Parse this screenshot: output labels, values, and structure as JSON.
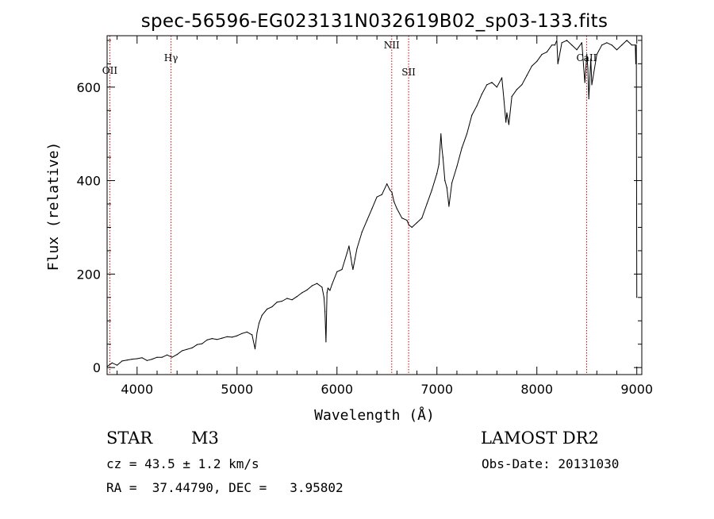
{
  "chart_data": {
    "type": "line",
    "title": "spec-56596-EG023131N032619B02_sp03-133.fits",
    "xlabel": "Wavelength (Å)",
    "ylabel": "Flux (relative)",
    "xlim": [
      3700,
      9050
    ],
    "ylim": [
      -15,
      710
    ],
    "xticks": [
      4000,
      5000,
      6000,
      7000,
      8000,
      9000
    ],
    "yticks": [
      0,
      200,
      400,
      600
    ],
    "grid": false,
    "legend": "none",
    "line_color": "#000000",
    "marker_color": "#cc0000",
    "series": [
      {
        "x": [
          3700,
          3750,
          3800,
          3850,
          3900,
          3950,
          4000,
          4050,
          4100,
          4150,
          4200,
          4250,
          4300,
          4350,
          4400,
          4450,
          4500,
          4550,
          4600,
          4650,
          4700,
          4750,
          4800,
          4850,
          4900,
          4950,
          5000,
          5050,
          5100,
          5150,
          5180,
          5200,
          5220,
          5250,
          5300,
          5350,
          5400,
          5450,
          5500,
          5550,
          5600,
          5650,
          5700,
          5750,
          5800,
          5850,
          5870,
          5880,
          5890,
          5900,
          5910,
          5930,
          5950,
          6000,
          6050,
          6100,
          6120,
          6140,
          6150,
          6160,
          6180,
          6200,
          6250,
          6300,
          6350,
          6400,
          6450,
          6500,
          6530,
          6550,
          6570,
          6600,
          6650,
          6700,
          6720,
          6750,
          6800,
          6850,
          6900,
          6950,
          7000,
          7020,
          7040,
          7050,
          7060,
          7080,
          7100,
          7120,
          7150,
          7200,
          7250,
          7300,
          7350,
          7400,
          7450,
          7500,
          7550,
          7600,
          7650,
          7670,
          7690,
          7700,
          7720,
          7750,
          7800,
          7850,
          7900,
          7950,
          8000,
          8050,
          8100,
          8150,
          8180,
          8200,
          8210,
          8220,
          8250,
          8300,
          8350,
          8400,
          8450,
          8480,
          8500,
          8510,
          8520,
          8540,
          8550,
          8600,
          8650,
          8700,
          8750,
          8800,
          8850,
          8900,
          8950,
          8985,
          8990,
          8995,
          9000
        ],
        "y": [
          2,
          10,
          5,
          14,
          16,
          18,
          19,
          21,
          15,
          18,
          22,
          22,
          27,
          22,
          28,
          36,
          39,
          42,
          49,
          51,
          59,
          62,
          60,
          63,
          66,
          65,
          68,
          73,
          76,
          70,
          40,
          75,
          95,
          112,
          125,
          130,
          140,
          142,
          148,
          145,
          152,
          160,
          166,
          175,
          180,
          172,
          150,
          120,
          55,
          160,
          170,
          165,
          178,
          205,
          210,
          245,
          260,
          235,
          220,
          210,
          232,
          255,
          290,
          315,
          340,
          365,
          370,
          393,
          380,
          375,
          355,
          340,
          320,
          315,
          305,
          300,
          310,
          320,
          350,
          380,
          415,
          435,
          500,
          470,
          450,
          400,
          385,
          345,
          395,
          430,
          470,
          500,
          540,
          560,
          585,
          605,
          610,
          600,
          620,
          575,
          525,
          545,
          520,
          580,
          595,
          605,
          625,
          645,
          655,
          670,
          675,
          690,
          690,
          700,
          650,
          660,
          695,
          700,
          690,
          680,
          695,
          610,
          670,
          640,
          575,
          660,
          605,
          670,
          690,
          695,
          690,
          680,
          690,
          700,
          690,
          690,
          650,
          690,
          150
        ]
      }
    ],
    "line_markers": [
      {
        "label": "OII",
        "x": 3727
      },
      {
        "label": "Hγ",
        "x": 4340
      },
      {
        "label": "NII",
        "x": 6548
      },
      {
        "label": "SII",
        "x": 6717
      },
      {
        "label": "CaII",
        "x": 8498
      }
    ]
  },
  "info": {
    "class": "STAR",
    "subclass": "M3",
    "survey": "LAMOST DR2",
    "redshift_line": "cz = 43.5 ± 1.2 km/s",
    "obs_date": "Obs-Date: 20131030",
    "coords": "RA =  37.44790, DEC =   3.95802"
  }
}
